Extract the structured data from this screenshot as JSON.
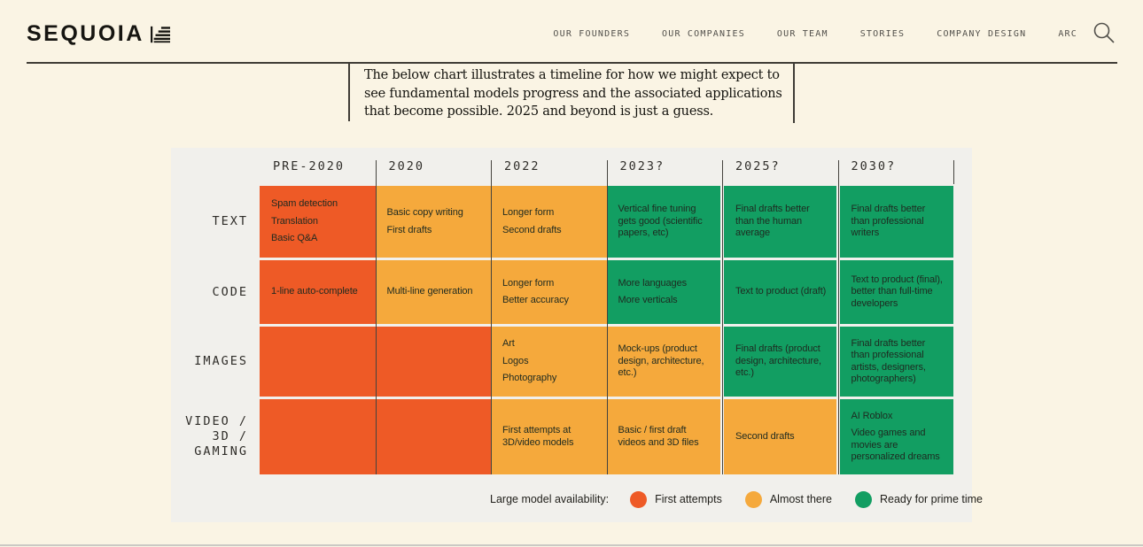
{
  "page": {
    "background": "#FAF4E4",
    "panel_background": "#F1F0EC",
    "divider_color": "#3F3C36",
    "bottom_bar_color": "#CBC9C4"
  },
  "header": {
    "logo_text": "SEQUOIA",
    "nav_items": [
      "OUR FOUNDERS",
      "OUR COMPANIES",
      "OUR TEAM",
      "STORIES",
      "COMPANY DESIGN",
      "ARC"
    ],
    "search_icon": "magnifying-glass"
  },
  "quote": {
    "text": "The below chart illustrates a timeline for how we might expect to see fundamental models progress and the associated applications that become possible. 2025 and beyond is just a guess."
  },
  "chart_data": {
    "type": "table",
    "title": "Timeline of fundamental model progress by modality",
    "columns": [
      "PRE-2020",
      "2020",
      "2022",
      "2023?",
      "2025?",
      "2030?"
    ],
    "status_colors": {
      "first_attempts": "#EE5A26",
      "almost_there": "#F5A93C",
      "ready_for_prime_time": "#129E62"
    },
    "rows": [
      {
        "label_lines": [
          "TEXT"
        ],
        "cells": [
          {
            "status": "first_attempts",
            "items": [
              "Spam detection",
              "Translation",
              "Basic Q&A"
            ]
          },
          {
            "status": "almost_there",
            "items": [
              "Basic copy writing",
              "First drafts"
            ]
          },
          {
            "status": "almost_there",
            "items": [
              "Longer form",
              "Second drafts"
            ]
          },
          {
            "status": "ready_for_prime_time",
            "items": [
              "Vertical fine tuning gets good (scientific papers, etc)"
            ]
          },
          {
            "status": "ready_for_prime_time",
            "items": [
              "Final drafts better than the human average"
            ]
          },
          {
            "status": "ready_for_prime_time",
            "items": [
              "Final drafts better than professional writers"
            ]
          }
        ]
      },
      {
        "label_lines": [
          "CODE"
        ],
        "cells": [
          {
            "status": "first_attempts",
            "items": [
              "1-line auto-complete"
            ]
          },
          {
            "status": "almost_there",
            "items": [
              "Multi-line generation"
            ]
          },
          {
            "status": "almost_there",
            "items": [
              "Longer form",
              "Better accuracy"
            ]
          },
          {
            "status": "ready_for_prime_time",
            "items": [
              "More languages",
              "More verticals"
            ]
          },
          {
            "status": "ready_for_prime_time",
            "items": [
              "Text to product (draft)"
            ]
          },
          {
            "status": "ready_for_prime_time",
            "items": [
              "Text to product (final), better than full-time developers"
            ]
          }
        ]
      },
      {
        "label_lines": [
          "IMAGES"
        ],
        "cells": [
          {
            "status": "first_attempts",
            "items": []
          },
          {
            "status": "first_attempts",
            "items": []
          },
          {
            "status": "almost_there",
            "items": [
              "Art",
              "Logos",
              "Photography"
            ]
          },
          {
            "status": "almost_there",
            "items": [
              "Mock-ups (product design, architecture, etc.)"
            ]
          },
          {
            "status": "ready_for_prime_time",
            "items": [
              "Final drafts (product design, architecture, etc.)"
            ]
          },
          {
            "status": "ready_for_prime_time",
            "items": [
              "Final drafts better than professional artists, designers, photographers)"
            ]
          }
        ]
      },
      {
        "label_lines": [
          "VIDEO /",
          "3D /",
          "GAMING"
        ],
        "cells": [
          {
            "status": "first_attempts",
            "items": []
          },
          {
            "status": "first_attempts",
            "items": []
          },
          {
            "status": "almost_there",
            "items": [
              "First attempts at 3D/video models"
            ]
          },
          {
            "status": "almost_there",
            "items": [
              "Basic / first draft videos and 3D files"
            ]
          },
          {
            "status": "almost_there",
            "items": [
              "Second drafts"
            ]
          },
          {
            "status": "ready_for_prime_time",
            "items": [
              "AI Roblox",
              "Video games and movies are personalized dreams"
            ]
          }
        ]
      }
    ],
    "legend": {
      "title": "Large model availability:",
      "entries": [
        {
          "label": "First attempts",
          "status": "first_attempts"
        },
        {
          "label": "Almost there",
          "status": "almost_there"
        },
        {
          "label": "Ready for prime time",
          "status": "ready_for_prime_time"
        }
      ]
    }
  }
}
